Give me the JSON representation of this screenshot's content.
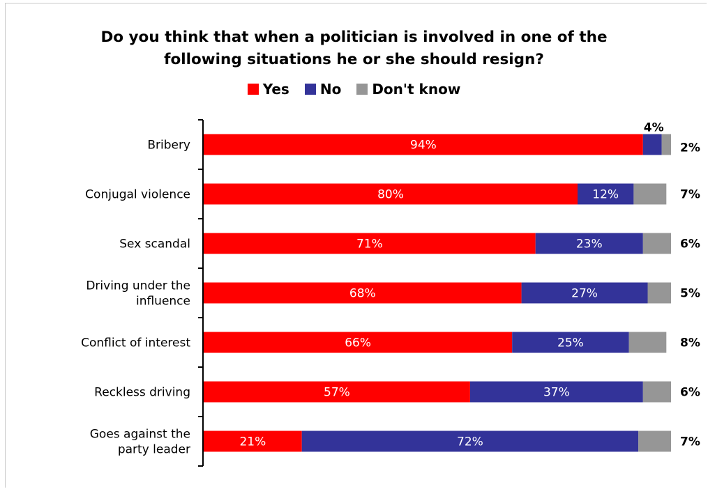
{
  "chart_data": {
    "type": "bar",
    "orientation": "horizontal",
    "stacked": true,
    "title_lines": [
      "Do you think that when a politician is involved in one of the",
      "following situations he or she should resign?"
    ],
    "categories": [
      [
        "Bribery"
      ],
      [
        "Conjugal violence"
      ],
      [
        "Sex scandal"
      ],
      [
        "Driving under the",
        "influence"
      ],
      [
        "Conflict of interest"
      ],
      [
        "Reckless driving"
      ],
      [
        "Goes against the",
        "party leader"
      ]
    ],
    "series": [
      {
        "name": "Yes",
        "color": "#ff0000",
        "values": [
          94,
          80,
          71,
          68,
          66,
          57,
          21
        ]
      },
      {
        "name": "No",
        "color": "#333399",
        "values": [
          4,
          12,
          23,
          27,
          25,
          37,
          72
        ]
      },
      {
        "name": "Don't know",
        "color": "#969696",
        "values": [
          2,
          7,
          6,
          5,
          8,
          6,
          7
        ]
      }
    ],
    "legend_position": "top",
    "grid": false,
    "value_suffix": "%"
  }
}
